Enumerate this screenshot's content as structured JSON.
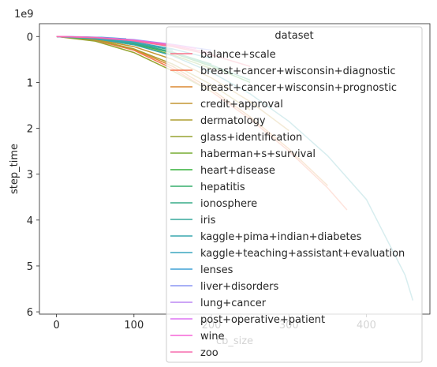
{
  "chart_data": {
    "type": "line",
    "xlabel": "cb_size",
    "ylabel": "step_time",
    "y_offset_text": "1e9",
    "y_inverted": true,
    "xlim": [
      -22,
      482
    ],
    "ylim": [
      6.05,
      -0.28
    ],
    "x_ticks": [
      0,
      100,
      200,
      300,
      400
    ],
    "y_ticks": [
      0,
      1,
      2,
      3,
      4,
      5,
      6
    ],
    "grid": false,
    "legend": {
      "title": "dataset",
      "placement": "top-right"
    },
    "series": [
      {
        "name": "balance+scale",
        "color": "#f77189",
        "x": [
          0,
          50,
          100,
          150,
          200,
          250
        ],
        "y": [
          0,
          0.03,
          0.1,
          0.22,
          0.4,
          0.65
        ]
      },
      {
        "name": "breast+cancer+wisconsin+diagnostic",
        "color": "#f7754f",
        "x": [
          0,
          50,
          100,
          150,
          200,
          250,
          300,
          350,
          375
        ],
        "y": [
          0,
          0.08,
          0.3,
          0.7,
          1.2,
          1.8,
          2.5,
          3.3,
          3.78
        ]
      },
      {
        "name": "breast+cancer+wisconsin+prognostic",
        "color": "#dc8932",
        "x": [
          0,
          50,
          100,
          150,
          200,
          250,
          300,
          350
        ],
        "y": [
          0,
          0.07,
          0.28,
          0.65,
          1.15,
          1.75,
          2.45,
          3.25
        ]
      },
      {
        "name": "credit+approval",
        "color": "#c39532",
        "x": [
          0,
          50,
          100,
          150,
          200,
          250,
          300
        ],
        "y": [
          0,
          0.06,
          0.22,
          0.5,
          0.9,
          1.42,
          2.05
        ]
      },
      {
        "name": "dermatology",
        "color": "#ae9d31",
        "x": [
          0,
          50,
          100,
          150,
          200,
          250
        ],
        "y": [
          0,
          0.07,
          0.27,
          0.6,
          1.05,
          1.6
        ]
      },
      {
        "name": "glass+identification",
        "color": "#97a431",
        "x": [
          0,
          50,
          100,
          150,
          200
        ],
        "y": [
          0,
          0.1,
          0.35,
          0.75,
          1.2
        ]
      },
      {
        "name": "haberman+s+survival",
        "color": "#77ab31",
        "x": [
          0,
          50,
          100,
          150,
          200
        ],
        "y": [
          0,
          0.05,
          0.18,
          0.4,
          0.7
        ]
      },
      {
        "name": "heart+disease",
        "color": "#33b039",
        "x": [
          0,
          50,
          100,
          150,
          200,
          250
        ],
        "y": [
          0,
          0.04,
          0.16,
          0.36,
          0.65,
          1.0
        ]
      },
      {
        "name": "hepatitis",
        "color": "#35ad6b",
        "x": [
          0,
          50,
          100,
          150,
          200
        ],
        "y": [
          0,
          0.04,
          0.15,
          0.34,
          0.6
        ]
      },
      {
        "name": "ionosphere",
        "color": "#36ab87",
        "x": [
          0,
          50,
          100,
          150,
          200,
          250
        ],
        "y": [
          0,
          0.04,
          0.15,
          0.35,
          0.62,
          0.95
        ]
      },
      {
        "name": "iris",
        "color": "#37a99b",
        "x": [
          0,
          50,
          100,
          150
        ],
        "y": [
          0,
          0.04,
          0.14,
          0.3
        ]
      },
      {
        "name": "kaggle+pima+indian+diabetes",
        "color": "#38a7ad",
        "x": [
          0,
          50,
          100,
          150,
          200,
          250,
          300,
          350,
          400,
          450,
          460
        ],
        "y": [
          0,
          0.05,
          0.18,
          0.42,
          0.78,
          1.25,
          1.85,
          2.6,
          3.55,
          5.2,
          5.75
        ]
      },
      {
        "name": "kaggle+teaching+assistant+evaluation",
        "color": "#3aa5bf",
        "x": [
          0,
          50,
          100,
          150,
          200
        ],
        "y": [
          0,
          0.03,
          0.12,
          0.27,
          0.48
        ]
      },
      {
        "name": "lenses",
        "color": "#3ea1d6",
        "x": [
          0,
          20,
          40,
          60,
          80,
          90
        ],
        "y": [
          0,
          0.003,
          0.01,
          0.02,
          0.04,
          0.05
        ]
      },
      {
        "name": "liver+disorders",
        "color": "#8b95f4",
        "x": [
          0,
          50,
          100,
          150,
          200
        ],
        "y": [
          0,
          0.02,
          0.07,
          0.17,
          0.3
        ]
      },
      {
        "name": "lung+cancer",
        "color": "#bc87f4",
        "x": [
          0,
          20,
          40,
          60
        ],
        "y": [
          0,
          0.005,
          0.015,
          0.03
        ]
      },
      {
        "name": "post+operative+patient",
        "color": "#dd73f4",
        "x": [
          0,
          20,
          40,
          60,
          80
        ],
        "y": [
          0,
          0.005,
          0.015,
          0.03,
          0.05
        ]
      },
      {
        "name": "wine",
        "color": "#f565d7",
        "x": [
          0,
          50,
          100,
          150,
          180
        ],
        "y": [
          0,
          0.02,
          0.08,
          0.18,
          0.26
        ]
      },
      {
        "name": "zoo",
        "color": "#f66bae",
        "x": [
          0,
          50,
          100,
          150,
          200
        ],
        "y": [
          0,
          0.025,
          0.09,
          0.2,
          0.36
        ]
      }
    ]
  }
}
